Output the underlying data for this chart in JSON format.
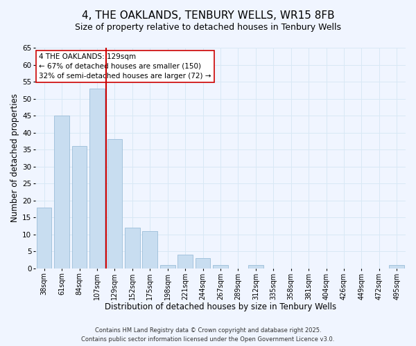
{
  "title": "4, THE OAKLANDS, TENBURY WELLS, WR15 8FB",
  "subtitle": "Size of property relative to detached houses in Tenbury Wells",
  "xlabel": "Distribution of detached houses by size in Tenbury Wells",
  "ylabel": "Number of detached properties",
  "bar_labels": [
    "38sqm",
    "61sqm",
    "84sqm",
    "107sqm",
    "129sqm",
    "152sqm",
    "175sqm",
    "198sqm",
    "221sqm",
    "244sqm",
    "267sqm",
    "289sqm",
    "312sqm",
    "335sqm",
    "358sqm",
    "381sqm",
    "404sqm",
    "426sqm",
    "449sqm",
    "472sqm",
    "495sqm"
  ],
  "bar_values": [
    18,
    45,
    36,
    53,
    38,
    12,
    11,
    1,
    4,
    3,
    1,
    0,
    1,
    0,
    0,
    0,
    0,
    0,
    0,
    0,
    1
  ],
  "highlight_index": 4,
  "highlight_color": "#cc0000",
  "bar_color": "#c8ddf0",
  "bar_edge_color": "#9bbdd8",
  "annotation_line1": "4 THE OAKLANDS: 129sqm",
  "annotation_line2": "← 67% of detached houses are smaller (150)",
  "annotation_line3": "32% of semi-detached houses are larger (72) →",
  "annotation_box_color": "#ffffff",
  "annotation_box_edge": "#cc0000",
  "ylim": [
    0,
    65
  ],
  "yticks": [
    0,
    5,
    10,
    15,
    20,
    25,
    30,
    35,
    40,
    45,
    50,
    55,
    60,
    65
  ],
  "footer_line1": "Contains HM Land Registry data © Crown copyright and database right 2025.",
  "footer_line2": "Contains public sector information licensed under the Open Government Licence v3.0.",
  "title_fontsize": 11,
  "subtitle_fontsize": 9,
  "bg_color": "#f0f5ff",
  "grid_color": "#d8e8f5"
}
